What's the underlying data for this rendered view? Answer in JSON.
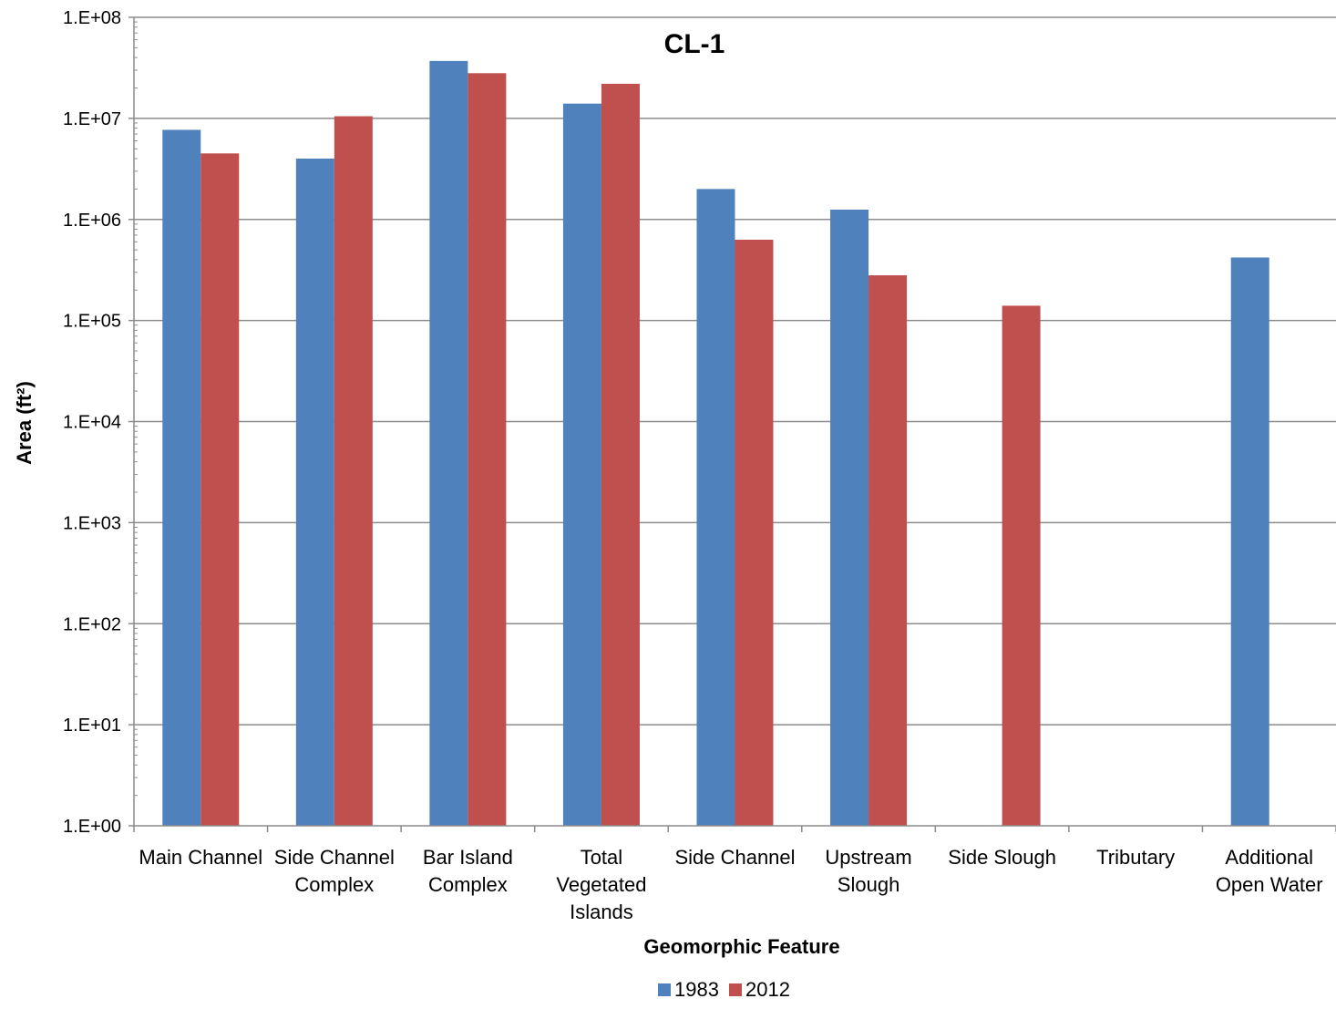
{
  "chart_data": {
    "type": "bar",
    "title": "CL-1",
    "xlabel": "Geomorphic Feature",
    "ylabel": "Area (ft²)",
    "yscale": "log",
    "ylim": [
      1,
      100000000
    ],
    "yticks": [
      {
        "value": 1,
        "label": "1.E+00"
      },
      {
        "value": 10,
        "label": "1.E+01"
      },
      {
        "value": 100,
        "label": "1.E+02"
      },
      {
        "value": 1000,
        "label": "1.E+03"
      },
      {
        "value": 10000,
        "label": "1.E+04"
      },
      {
        "value": 100000,
        "label": "1.E+05"
      },
      {
        "value": 1000000,
        "label": "1.E+06"
      },
      {
        "value": 10000000,
        "label": "1.E+07"
      },
      {
        "value": 100000000,
        "label": "1.E+08"
      }
    ],
    "categories": [
      [
        "Main Channel"
      ],
      [
        "Side Channel",
        "Complex"
      ],
      [
        "Bar Island",
        "Complex"
      ],
      [
        "Total",
        "Vegetated",
        "Islands"
      ],
      [
        "Side Channel"
      ],
      [
        "Upstream",
        "Slough"
      ],
      [
        "Side Slough"
      ],
      [
        "Tributary"
      ],
      [
        "Additional",
        "Open Water"
      ]
    ],
    "series": [
      {
        "name": "1983",
        "color": "#4F81BD",
        "values": [
          7700000,
          4000000,
          37000000,
          14000000,
          2000000,
          1250000,
          null,
          null,
          420000
        ]
      },
      {
        "name": "2012",
        "color": "#C0504D",
        "values": [
          4500000,
          10500000,
          28000000,
          22000000,
          630000,
          280000,
          140000,
          null,
          null
        ]
      }
    ],
    "grid": true,
    "legend_position": "bottom-center"
  }
}
